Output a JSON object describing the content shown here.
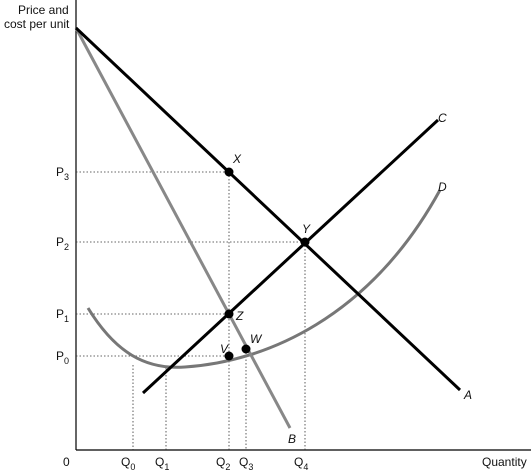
{
  "axes": {
    "y_label": [
      "Price and",
      "cost per unit"
    ],
    "x_label": "Quantity",
    "origin": "0"
  },
  "price_labels": [
    {
      "symbol": "P",
      "sub": "3"
    },
    {
      "symbol": "P",
      "sub": "2"
    },
    {
      "symbol": "P",
      "sub": "1"
    },
    {
      "symbol": "P",
      "sub": "0"
    }
  ],
  "quantity_labels": [
    {
      "symbol": "Q",
      "sub": "0"
    },
    {
      "symbol": "Q",
      "sub": "1"
    },
    {
      "symbol": "Q",
      "sub": "2"
    },
    {
      "symbol": "Q",
      "sub": "3"
    },
    {
      "symbol": "Q",
      "sub": "4"
    }
  ],
  "curve_labels": [
    "A",
    "B",
    "C",
    "D"
  ],
  "point_labels": [
    "X",
    "Y",
    "Z",
    "V",
    "W"
  ]
}
